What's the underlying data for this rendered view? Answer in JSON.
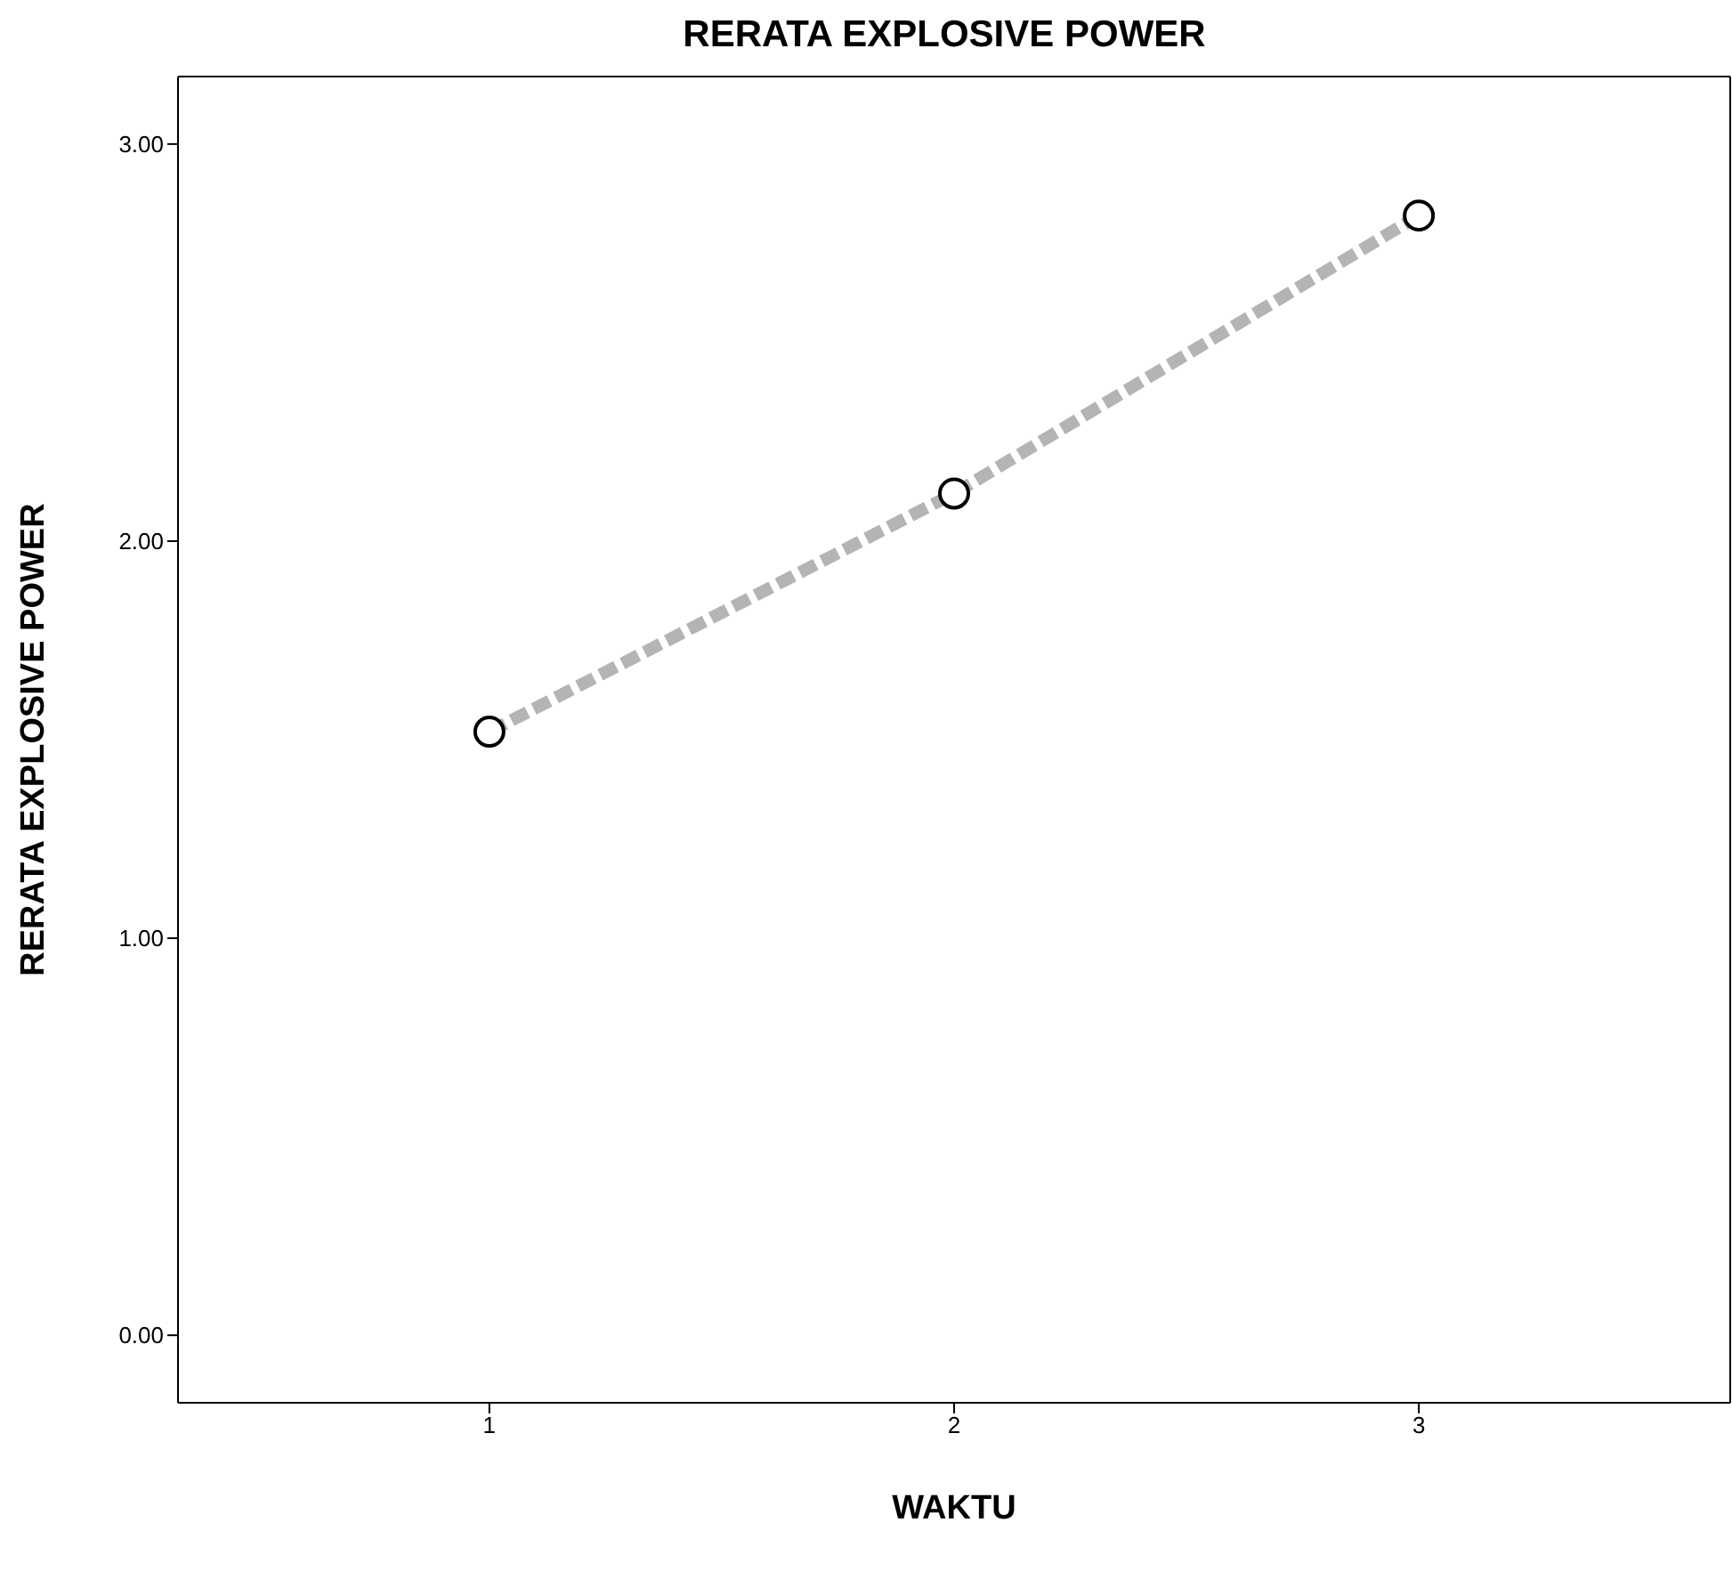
{
  "chart_data": {
    "type": "line",
    "title": "RERATA EXPLOSIVE POWER",
    "xlabel": "WAKTU",
    "ylabel": "RERATA EXPLOSIVE POWER",
    "x": [
      1,
      2,
      3
    ],
    "series": [
      {
        "color": "#b4b4b4",
        "values": [
          1.52,
          2.12,
          2.82
        ]
      }
    ],
    "xlim": [
      0.33,
      3.67
    ],
    "xticks": [
      1,
      2,
      3
    ],
    "ylim": [
      -0.17,
      3.17
    ],
    "yticks": [
      {
        "value": 0,
        "label": "0.00"
      },
      {
        "value": 1,
        "label": "1.00"
      },
      {
        "value": 2,
        "label": "2.00"
      },
      {
        "value": 3,
        "label": "3.00"
      }
    ],
    "grid": false,
    "legend": false,
    "marker": "circle",
    "line_style": "dashed"
  }
}
